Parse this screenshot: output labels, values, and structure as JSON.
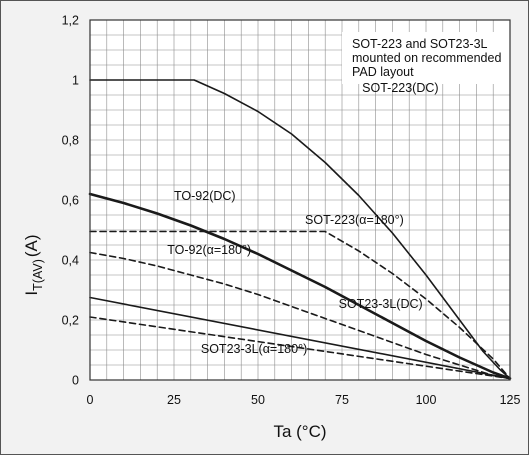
{
  "colors": {
    "panel_background": "#f2f2f2",
    "plot_background": "#ffffff",
    "grid": "#8c8c8c",
    "curve": "#1a1a1a",
    "frame": "#555555"
  },
  "chart_data": {
    "type": "line",
    "xlabel": "Ta (°C)",
    "ylabel_main": "I",
    "ylabel_sub": "T(AV)",
    "ylabel_unit": "(A)",
    "xlim": [
      0,
      125
    ],
    "ylim": [
      0,
      1.2
    ],
    "x_ticks": [
      0,
      25,
      50,
      75,
      100,
      125
    ],
    "x_tick_labels": [
      "0",
      "25",
      "50",
      "75",
      "100",
      "125"
    ],
    "y_ticks": [
      0,
      0.2,
      0.4,
      0.6,
      0.8,
      1,
      1.2
    ],
    "y_tick_labels": [
      "0",
      "0,2",
      "0,4",
      "0,6",
      "0,8",
      "1",
      "1,2"
    ],
    "grid": true,
    "note_lines": [
      "SOT-223 and SOT23-3L",
      "mounted on recommended",
      "PAD layout"
    ],
    "series": [
      {
        "name": "SOT-223(DC)",
        "style": "solid",
        "points": [
          [
            0,
            1.0
          ],
          [
            31,
            1.0
          ],
          [
            40,
            0.955
          ],
          [
            50,
            0.895
          ],
          [
            60,
            0.82
          ],
          [
            70,
            0.725
          ],
          [
            80,
            0.615
          ],
          [
            90,
            0.49
          ],
          [
            100,
            0.35
          ],
          [
            110,
            0.2
          ],
          [
            117,
            0.095
          ],
          [
            122,
            0.035
          ],
          [
            125,
            0.005
          ]
        ]
      },
      {
        "name": "TO-92(DC)",
        "style": "bold",
        "points": [
          [
            0,
            0.62
          ],
          [
            10,
            0.59
          ],
          [
            20,
            0.555
          ],
          [
            30,
            0.515
          ],
          [
            40,
            0.47
          ],
          [
            50,
            0.42
          ],
          [
            60,
            0.365
          ],
          [
            70,
            0.31
          ],
          [
            80,
            0.25
          ],
          [
            90,
            0.19
          ],
          [
            100,
            0.13
          ],
          [
            110,
            0.075
          ],
          [
            120,
            0.025
          ],
          [
            125,
            0.005
          ]
        ]
      },
      {
        "name": "SOT-223(α=180°)",
        "style": "dashed",
        "points": [
          [
            0,
            0.495
          ],
          [
            70,
            0.495
          ],
          [
            80,
            0.43
          ],
          [
            90,
            0.355
          ],
          [
            100,
            0.27
          ],
          [
            110,
            0.175
          ],
          [
            120,
            0.07
          ],
          [
            125,
            0.005
          ]
        ]
      },
      {
        "name": "TO-92(α=180°)",
        "style": "dashed",
        "points": [
          [
            0,
            0.425
          ],
          [
            10,
            0.405
          ],
          [
            20,
            0.38
          ],
          [
            30,
            0.35
          ],
          [
            40,
            0.32
          ],
          [
            50,
            0.285
          ],
          [
            60,
            0.245
          ],
          [
            70,
            0.205
          ],
          [
            80,
            0.165
          ],
          [
            90,
            0.125
          ],
          [
            100,
            0.085
          ],
          [
            110,
            0.05
          ],
          [
            120,
            0.015
          ],
          [
            125,
            0.005
          ]
        ]
      },
      {
        "name": "SOT23-3L(DC)",
        "style": "solid",
        "points": [
          [
            0,
            0.275
          ],
          [
            125,
            0.005
          ]
        ]
      },
      {
        "name": "SOT23-3L(α=180°)",
        "style": "dashed",
        "points": [
          [
            0,
            0.21
          ],
          [
            125,
            0.005
          ]
        ]
      }
    ],
    "annotations": [
      {
        "series": 0,
        "text": "SOT-223(DC)",
        "x": 81,
        "y": 0.96
      },
      {
        "series": 1,
        "text": "TO-92(DC)",
        "x": 25,
        "y": 0.6
      },
      {
        "series": 2,
        "text": "SOT-223(α=180°)",
        "x": 64,
        "y": 0.52
      },
      {
        "series": 3,
        "text": "TO-92(α=180°)",
        "x": 23,
        "y": 0.42
      },
      {
        "series": 4,
        "text": "SOT23-3L(DC)",
        "x": 74,
        "y": 0.24
      },
      {
        "series": 5,
        "text": "SOT23-3L(α=180°)",
        "x": 33,
        "y": 0.09
      }
    ]
  }
}
